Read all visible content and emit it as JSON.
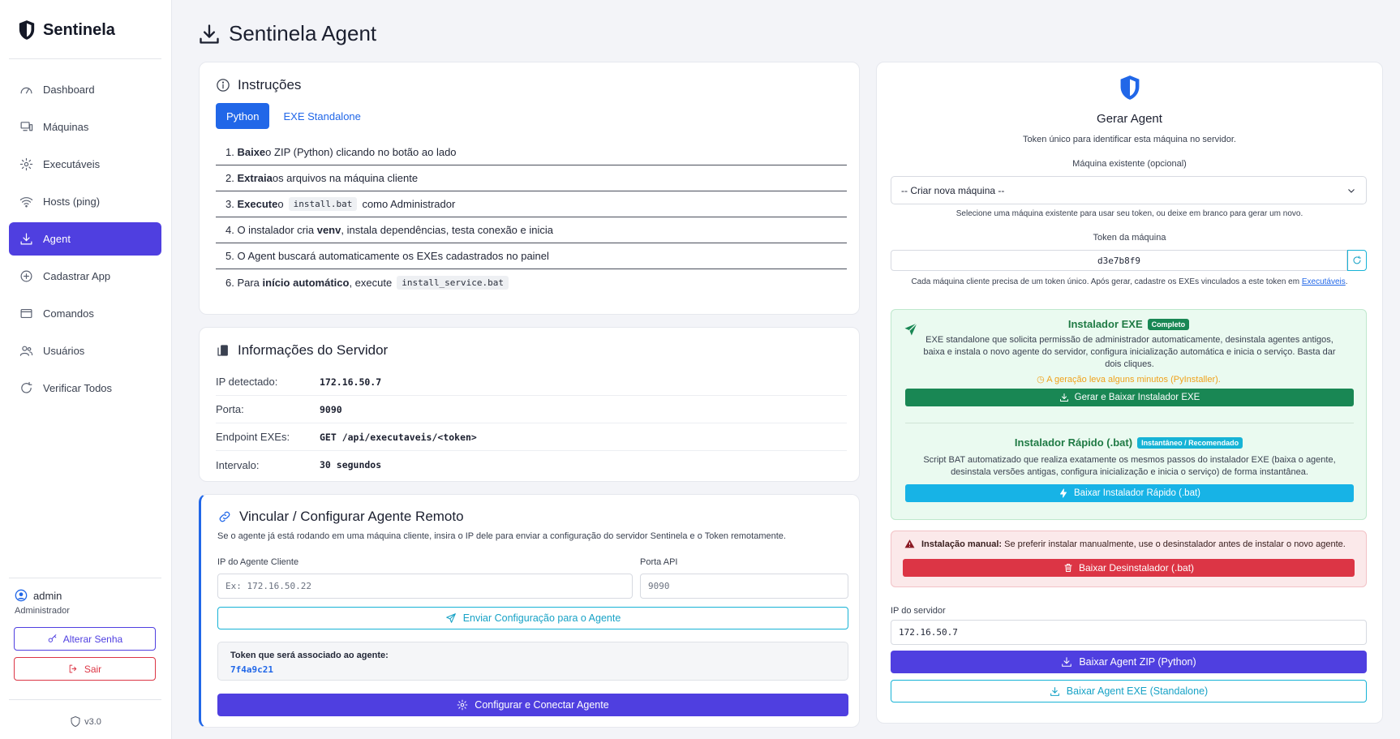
{
  "app": {
    "name": "Sentinela",
    "version": "v3.0"
  },
  "sidebar": {
    "items": [
      {
        "label": "Dashboard",
        "icon": "dashboard-icon"
      },
      {
        "label": "Máquinas",
        "icon": "computer-icon"
      },
      {
        "label": "Executáveis",
        "icon": "gear-icon"
      },
      {
        "label": "Hosts (ping)",
        "icon": "wifi-icon"
      },
      {
        "label": "Agent",
        "icon": "download-icon",
        "active": true
      },
      {
        "label": "Cadastrar App",
        "icon": "plus-circle-icon"
      },
      {
        "label": "Comandos",
        "icon": "terminal-icon"
      },
      {
        "label": "Usuários",
        "icon": "users-icon"
      },
      {
        "label": "Verificar Todos",
        "icon": "refresh-icon"
      }
    ],
    "user": {
      "name": "admin",
      "role": "Administrador"
    },
    "change_password_label": "Alterar Senha",
    "logout_label": "Sair"
  },
  "header": {
    "title": "Sentinela Agent"
  },
  "instructions": {
    "title": "Instruções",
    "tabs": [
      "Python",
      "EXE Standalone"
    ],
    "steps": [
      {
        "n": "1.",
        "pre": "Baixe",
        "post": " o ZIP (Python) clicando no botão ao lado"
      },
      {
        "n": "2.",
        "pre": "Extraia",
        "post": " os arquivos na máquina cliente"
      },
      {
        "n": "3.",
        "pre": "Execute",
        "mid": " o",
        "code": "install.bat",
        "post": "como Administrador"
      },
      {
        "n": "4.",
        "pre_plain": " O instalador cria ",
        "pre": "venv",
        "post": ", instala dependências, testa conexão e inicia"
      },
      {
        "n": "5.",
        "pre_plain": " O Agent buscará automaticamente os EXEs cadastrados no painel"
      },
      {
        "n": "6.",
        "pre_plain": " Para ",
        "pre": "início automático",
        "post": ", execute",
        "code": "install_service.bat"
      }
    ]
  },
  "server_info": {
    "title": "Informações do Servidor",
    "rows": [
      {
        "label": "IP detectado:",
        "value": "172.16.50.7"
      },
      {
        "label": "Porta:",
        "value": "9090"
      },
      {
        "label": "Endpoint EXEs:",
        "value": "GET /api/executaveis/<token>"
      },
      {
        "label": "Intervalo:",
        "value": "30 segundos"
      }
    ]
  },
  "remote": {
    "title": "Vincular / Configurar Agente Remoto",
    "description": "Se o agente já está rodando em uma máquina cliente, insira o IP dele para enviar a configuração do servidor Sentinela e o Token remotamente.",
    "ip_label": "IP do Agente Cliente",
    "ip_placeholder": "Ex: 172.16.50.22",
    "port_label": "Porta API",
    "port_placeholder": "9090",
    "send_label": "Enviar Configuração para o Agente",
    "token_label": "Token que será associado ao agente:",
    "token_value": "7f4a9c21",
    "configure_label": "Configurar e Conectar Agente"
  },
  "generate": {
    "title": "Gerar Agent",
    "subtitle": "Token único para identificar esta máquina no servidor.",
    "machine_label": "Máquina existente (opcional)",
    "machine_selected": "-- Criar nova máquina --",
    "machine_help": "Selecione uma máquina existente para usar seu token, ou deixe em branco para gerar um novo.",
    "token_label": "Token da máquina",
    "token_value": "d3e7b8f9",
    "token_help": "Cada máquina cliente precisa de um token único. Após gerar, cadastre os EXEs vinculados a este token em",
    "token_help_link": "Executáveis",
    "exe_installer": {
      "title": "Instalador EXE",
      "badge": "Completo",
      "description": "EXE standalone que solicita permissão de administrador automaticamente, desinstala agentes antigos, baixa e instala o novo agente do servidor, configura inicialização automática e inicia o serviço. Basta dar dois cliques.",
      "warning": "A geração leva alguns minutos (PyInstaller).",
      "button": "Gerar e Baixar Instalador EXE"
    },
    "bat_installer": {
      "title": "Instalador Rápido (.bat)",
      "badge": "Instantâneo / Recomendado",
      "description": "Script BAT automatizado que realiza exatamente os mesmos passos do instalador EXE (baixa o agente, desinstala versões antigas, configura inicialização e inicia o serviço) de forma instantânea.",
      "button": "Baixar Instalador Rápido (.bat)"
    },
    "manual": {
      "bold": "Instalação manual:",
      "text": " Se preferir instalar manualmente, use o desinstalador antes de instalar o novo agente.",
      "button": "Baixar Desinstalador (.bat)"
    },
    "server_ip_label": "IP do servidor",
    "server_ip_value": "172.16.50.7",
    "download_zip_label": "Baixar Agent ZIP (Python)",
    "download_exe_label": "Baixar Agent EXE (Standalone)"
  },
  "colors": {
    "primary": "#4f3fe0",
    "blue": "#2167e8",
    "green": "#198754",
    "cyan": "#17b3e6",
    "red": "#dc3545"
  }
}
